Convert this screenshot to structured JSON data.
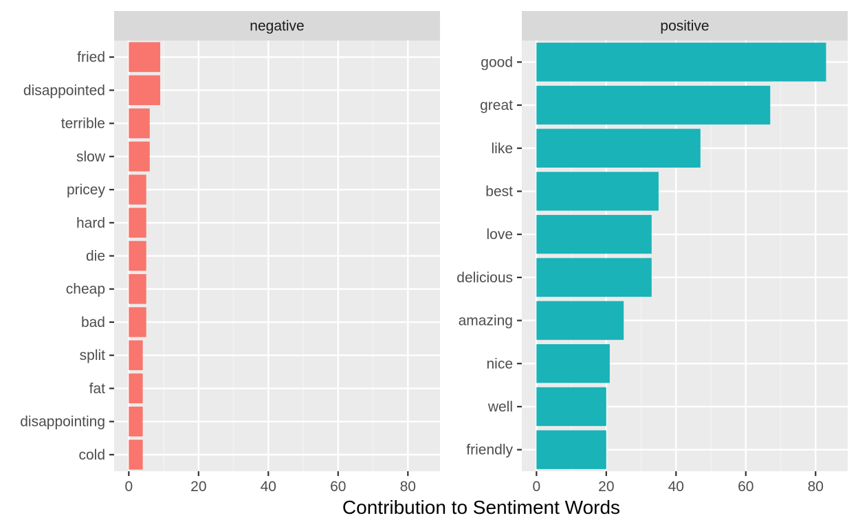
{
  "chart_data": {
    "type": "bar",
    "orientation": "horizontal",
    "xlabel": "Contribution to Sentiment Words",
    "ylabel": "",
    "xlim": [
      0,
      85
    ],
    "x_ticks": [
      0,
      20,
      40,
      60,
      80
    ],
    "grid": true,
    "legend": "none",
    "panels": [
      {
        "title": "negative",
        "color": "#F8766D",
        "categories": [
          "fried",
          "disappointed",
          "terrible",
          "slow",
          "pricey",
          "hard",
          "die",
          "cheap",
          "bad",
          "split",
          "fat",
          "disappointing",
          "cold"
        ],
        "values": [
          9,
          9,
          6,
          6,
          5,
          5,
          5,
          5,
          5,
          4,
          4,
          4,
          4
        ]
      },
      {
        "title": "positive",
        "color": "#19B3B8",
        "categories": [
          "good",
          "great",
          "like",
          "best",
          "love",
          "delicious",
          "amazing",
          "nice",
          "well",
          "friendly"
        ],
        "values": [
          83,
          67,
          47,
          35,
          33,
          33,
          25,
          21,
          20,
          20
        ]
      }
    ]
  }
}
